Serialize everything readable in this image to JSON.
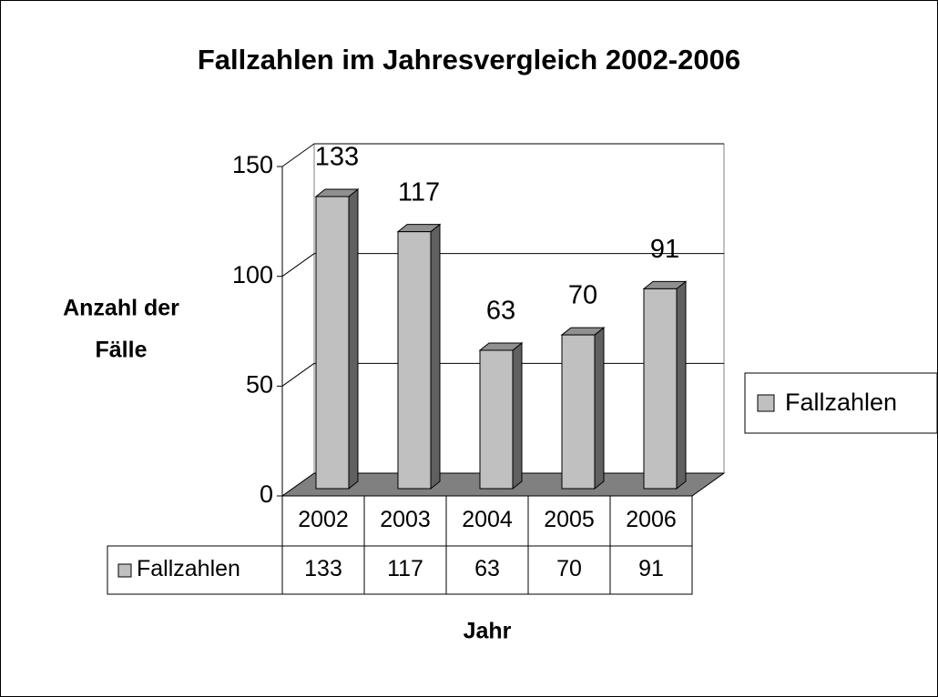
{
  "chart_data": {
    "type": "bar3d",
    "title": "Fallzahlen im Jahresvergleich 2002-2006",
    "ylabel_lines": [
      "Anzahl der",
      "Fälle"
    ],
    "xlabel": "Jahr",
    "categories": [
      "2002",
      "2003",
      "2004",
      "2005",
      "2006"
    ],
    "series": [
      {
        "name": "Fallzahlen",
        "color": "#c0c0c0",
        "values": [
          133,
          117,
          63,
          70,
          91
        ]
      }
    ],
    "ylim": [
      0,
      150
    ],
    "yticks": [
      0,
      50,
      100,
      150
    ],
    "grid": true,
    "legend": "right",
    "data_table": true
  }
}
